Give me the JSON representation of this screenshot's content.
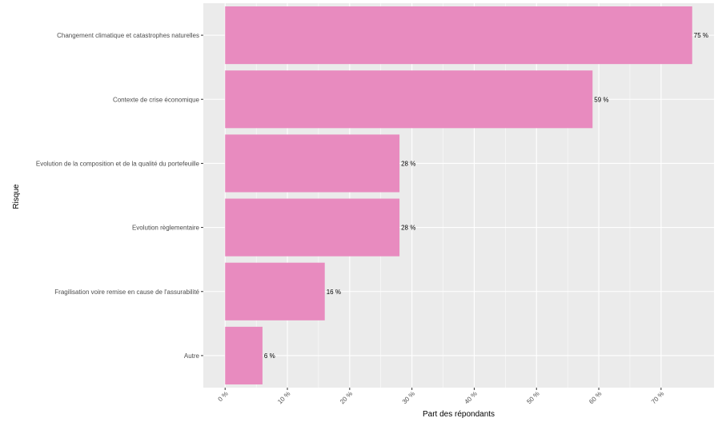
{
  "chart_data": {
    "type": "bar",
    "orientation": "horizontal",
    "categories": [
      "Changement climatique et catastrophes naturelles",
      "Contexte de crise économique",
      "Evolution de la composition et de la qualité du portefeuille",
      "Evolution règlementaire",
      "Fragilisation voire remise en cause de l'assurabilité",
      "Autre"
    ],
    "values": [
      75,
      59,
      28,
      28,
      16,
      6
    ],
    "data_labels": [
      "75 %",
      "59 %",
      "28 %",
      "28 %",
      "16 %",
      "6 %"
    ],
    "xlabel": "Part des répondants",
    "ylabel": "Risque",
    "xlim": [
      -3.5,
      78.5
    ],
    "x_ticks": [
      0,
      10,
      20,
      30,
      40,
      50,
      60,
      70
    ],
    "x_tick_labels": [
      "0 %",
      "10 %",
      "20 %",
      "30 %",
      "40 %",
      "50 %",
      "60 %",
      "70 %"
    ],
    "grid": true,
    "bar_color": "#e88bbf",
    "panel_color": "#ebebeb",
    "grid_color": "#ffffff"
  }
}
